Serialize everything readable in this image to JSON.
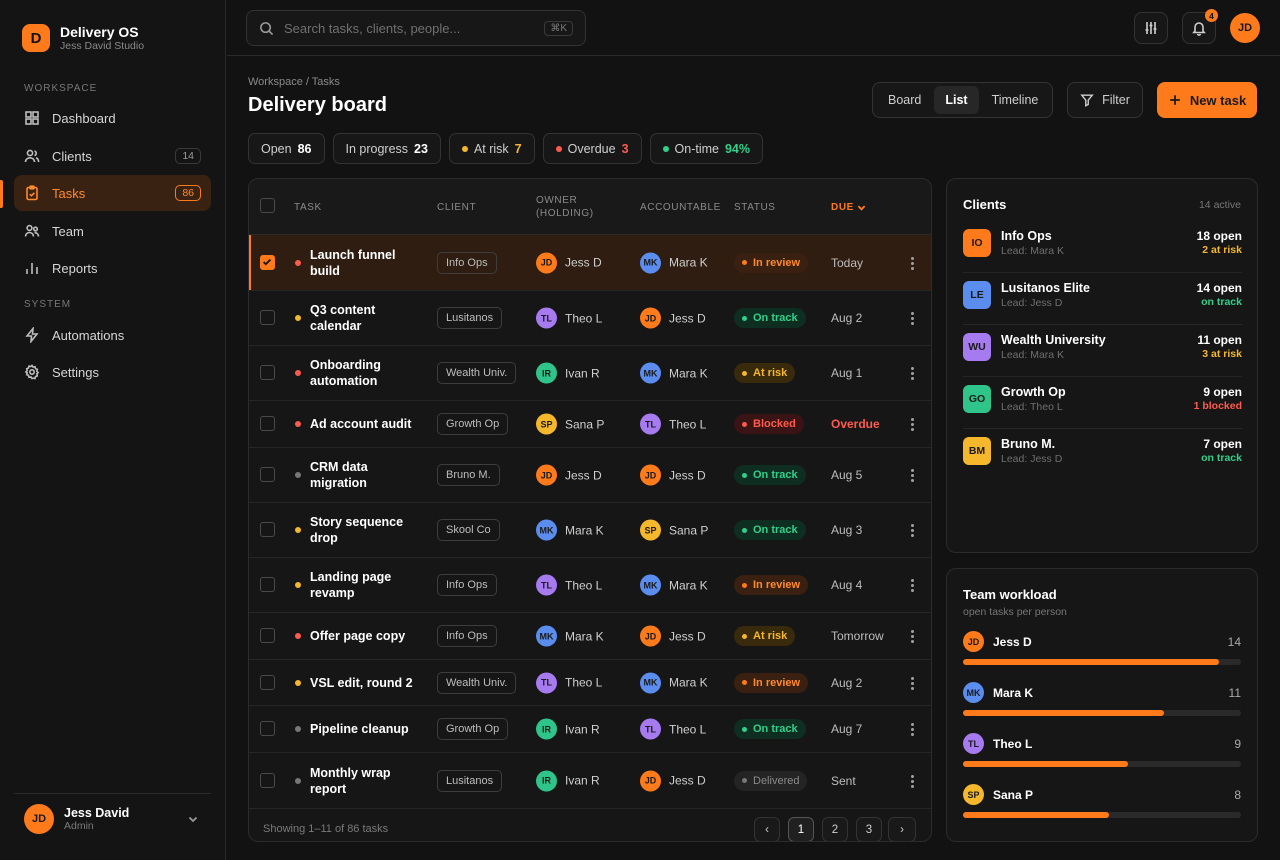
{
  "brand": {
    "logo_letter": "D",
    "name": "Delivery OS",
    "sub": "Jess David Studio"
  },
  "sidebar": {
    "workspace_label": "WORKSPACE",
    "system_label": "SYSTEM",
    "items": [
      {
        "label": "Dashboard",
        "icon": "grid-icon"
      },
      {
        "label": "Clients",
        "icon": "users-icon",
        "badge": "14"
      },
      {
        "label": "Tasks",
        "icon": "clipboard-icon",
        "badge": "86",
        "active": true
      },
      {
        "label": "Team",
        "icon": "team-icon"
      },
      {
        "label": "Reports",
        "icon": "bar-chart-icon"
      },
      {
        "label": "Automations",
        "icon": "bolt-icon"
      },
      {
        "label": "Settings",
        "icon": "gear-icon"
      }
    ],
    "user": {
      "initials": "JD",
      "name": "Jess David",
      "role": "Admin"
    }
  },
  "topbar": {
    "search_placeholder": "Search tasks, clients, people...",
    "shortcut": "⌘K",
    "notif_count": "4",
    "avatar": "JD"
  },
  "header": {
    "breadcrumb": "Workspace / Tasks",
    "title": "Delivery board",
    "views": [
      "Board",
      "List",
      "Timeline"
    ],
    "active_view": "List",
    "filter_label": "Filter",
    "new_label": "New task"
  },
  "stats": [
    {
      "label": "Open",
      "value": "86",
      "dot": "",
      "color": "#ffffff"
    },
    {
      "label": "In progress",
      "value": "23",
      "dot": "",
      "color": "#ffffff"
    },
    {
      "label": "At risk",
      "value": "7",
      "dot": "#f5b72b",
      "color": "#f5b72b"
    },
    {
      "label": "Overdue",
      "value": "3",
      "dot": "#ff5b4d",
      "color": "#ff5b4d"
    },
    {
      "label": "On-time",
      "value": "94%",
      "dot": "#2fd18a",
      "color": "#2fd18a"
    }
  ],
  "table": {
    "columns": {
      "task": "TASK",
      "client": "CLIENT",
      "owner": "OWNER",
      "owner_sub": "(HOLDING)",
      "accountable": "ACCOUNTABLE",
      "status": "STATUS",
      "due": "DUE"
    },
    "rows": [
      {
        "task": "Launch funnel build",
        "client": "Info Ops",
        "owner": "Jess D",
        "owner_i": "JD",
        "acc": "Mara K",
        "acc_i": "MK",
        "status": "In review",
        "due": "Today",
        "prio": "#ff5b4d",
        "checked": true
      },
      {
        "task": "Q3 content calendar",
        "client": "Lusitanos",
        "owner": "Theo L",
        "owner_i": "TL",
        "acc": "Jess D",
        "acc_i": "JD",
        "status": "On track",
        "due": "Aug 2",
        "prio": "#f5b72b"
      },
      {
        "task": "Onboarding automation",
        "client": "Wealth Univ.",
        "owner": "Ivan R",
        "owner_i": "IR",
        "acc": "Mara K",
        "acc_i": "MK",
        "status": "At risk",
        "due": "Aug 1",
        "prio": "#ff5b4d"
      },
      {
        "task": "Ad account audit",
        "client": "Growth Op",
        "owner": "Sana P",
        "owner_i": "SP",
        "acc": "Theo L",
        "acc_i": "TL",
        "status": "Blocked",
        "due": "Overdue",
        "prio": "#ff5b4d",
        "overdue": true
      },
      {
        "task": "CRM data migration",
        "client": "Bruno M.",
        "owner": "Jess D",
        "owner_i": "JD",
        "acc": "Jess D",
        "acc_i": "JD",
        "status": "On track",
        "due": "Aug 5",
        "prio": "#777777"
      },
      {
        "task": "Story sequence drop",
        "client": "Skool Co",
        "owner": "Mara K",
        "owner_i": "MK",
        "acc": "Sana P",
        "acc_i": "SP",
        "status": "On track",
        "due": "Aug 3",
        "prio": "#f5b72b"
      },
      {
        "task": "Landing page revamp",
        "client": "Info Ops",
        "owner": "Theo L",
        "owner_i": "TL",
        "acc": "Mara K",
        "acc_i": "MK",
        "status": "In review",
        "due": "Aug 4",
        "prio": "#f5b72b"
      },
      {
        "task": "Offer page copy",
        "client": "Info Ops",
        "owner": "Mara K",
        "owner_i": "MK",
        "acc": "Jess D",
        "acc_i": "JD",
        "status": "At risk",
        "due": "Tomorrow",
        "prio": "#ff5b4d"
      },
      {
        "task": "VSL edit, round 2",
        "client": "Wealth Univ.",
        "owner": "Theo L",
        "owner_i": "TL",
        "acc": "Mara K",
        "acc_i": "MK",
        "status": "In review",
        "due": "Aug 2",
        "prio": "#f5b72b"
      },
      {
        "task": "Pipeline cleanup",
        "client": "Growth Op",
        "owner": "Ivan R",
        "owner_i": "IR",
        "acc": "Theo L",
        "acc_i": "TL",
        "status": "On track",
        "due": "Aug 7",
        "prio": "#777777"
      },
      {
        "task": "Monthly wrap report",
        "client": "Lusitanos",
        "owner": "Ivan R",
        "owner_i": "IR",
        "acc": "Jess D",
        "acc_i": "JD",
        "status": "Delivered",
        "due": "Sent",
        "prio": "#777777"
      }
    ],
    "showing": "Showing 1–11 of 86 tasks",
    "pages": [
      "‹",
      "1",
      "2",
      "3",
      "›"
    ],
    "active_page": "1"
  },
  "colors": {
    "accent": "#ff7a1a",
    "JD": "#ff7a1a",
    "MK": "#5b8def",
    "TL": "#a77bf0",
    "IR": "#2fc48a",
    "SP": "#f5b72b"
  },
  "clients": {
    "title": "Clients",
    "meta": "14 active",
    "items": [
      {
        "initials": "IO",
        "name": "Info Ops",
        "lead": "Lead: Mara K",
        "open": "18 open",
        "sub": "2 at risk",
        "sub_color": "#f5b72b",
        "logo": "#ff7a1a"
      },
      {
        "initials": "LE",
        "name": "Lusitanos Elite",
        "lead": "Lead: Jess D",
        "open": "14 open",
        "sub": "on track",
        "sub_color": "#2fd18a",
        "logo": "#5b8def"
      },
      {
        "initials": "WU",
        "name": "Wealth University",
        "lead": "Lead: Mara K",
        "open": "11 open",
        "sub": "3 at risk",
        "sub_color": "#f5b72b",
        "logo": "#a77bf0"
      },
      {
        "initials": "GO",
        "name": "Growth Op",
        "lead": "Lead: Theo L",
        "open": "9 open",
        "sub": "1 blocked",
        "sub_color": "#ff5b4d",
        "logo": "#2fc48a"
      },
      {
        "initials": "BM",
        "name": "Bruno M.",
        "lead": "Lead: Jess D",
        "open": "7 open",
        "sub": "on track",
        "sub_color": "#2fd18a",
        "logo": "#f5b72b"
      }
    ]
  },
  "workload": {
    "title": "Team workload",
    "sub": "open tasks per person",
    "max": 15.2,
    "items": [
      {
        "initials": "JD",
        "name": "Jess D",
        "count": 14
      },
      {
        "initials": "MK",
        "name": "Mara K",
        "count": 11
      },
      {
        "initials": "TL",
        "name": "Theo L",
        "count": 9
      },
      {
        "initials": "SP",
        "name": "Sana P",
        "count": 8
      }
    ]
  }
}
